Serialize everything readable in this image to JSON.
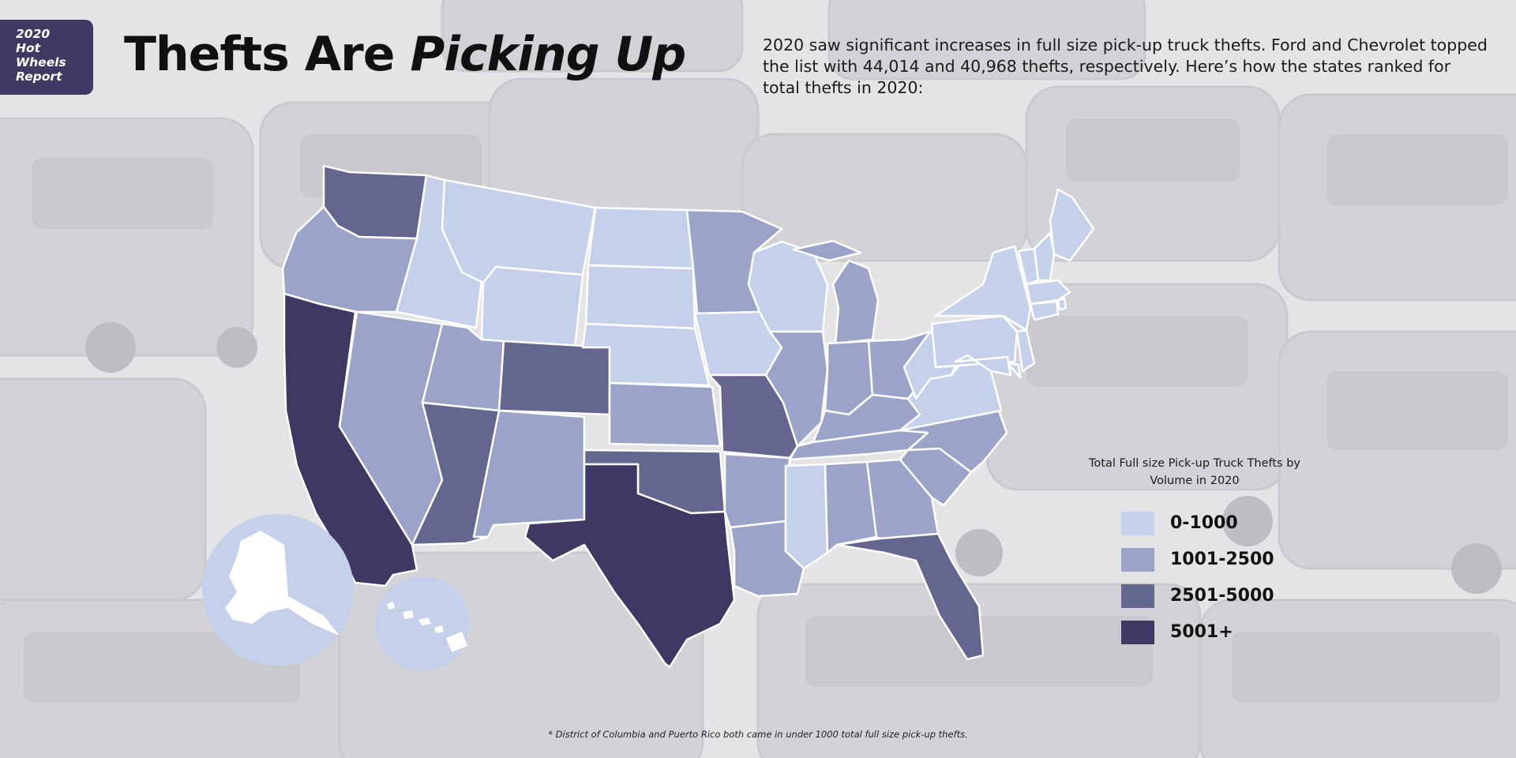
{
  "badge": {
    "lines": [
      "2020",
      "Hot",
      "Wheels",
      "Report"
    ]
  },
  "title": {
    "plain": "Thefts Are ",
    "italic": "Picking Up"
  },
  "intro": "2020 saw significant increases in full size pick-up truck thefts. Ford and Chevrolet topped the list with 44,014 and 40,968 thefts, respectively. Here’s how the states ranked for total thefts in 2020:",
  "legend": {
    "title": "Total Full size Pick-up Truck Thefts by Volume in 2020",
    "items": [
      {
        "label": "0-1000",
        "level": 1,
        "color": "#c5d0ea"
      },
      {
        "label": "1001-2500",
        "level": 2,
        "color": "#9ba4c8"
      },
      {
        "label": "2501-5000",
        "level": 3,
        "color": "#646690"
      },
      {
        "label": "5001+",
        "level": 4,
        "color": "#3e3862"
      }
    ]
  },
  "footnote": "* District of Columbia and Puerto Rico both came in under 1000 total full size pick-up thefts.",
  "map_data": {
    "category_by_state": {
      "WA": 3,
      "OR": 2,
      "CA": 4,
      "ID": 1,
      "NV": 2,
      "MT": 1,
      "WY": 1,
      "UT": 2,
      "AZ": 3,
      "CO": 3,
      "NM": 2,
      "ND": 1,
      "SD": 1,
      "NE": 1,
      "KS": 2,
      "OK": 3,
      "TX": 4,
      "MN": 2,
      "IA": 1,
      "MO": 3,
      "AR": 2,
      "LA": 2,
      "WI": 1,
      "IL": 2,
      "MI": 2,
      "IN": 2,
      "OH": 2,
      "KY": 2,
      "TN": 2,
      "MS": 1,
      "AL": 2,
      "GA": 2,
      "FL": 3,
      "SC": 2,
      "NC": 2,
      "VA": 1,
      "WV": 1,
      "PA": 1,
      "NY": 1,
      "ME": 1,
      "VT": 1,
      "NH": 1,
      "MA": 1,
      "RI": 1,
      "CT": 1,
      "NJ": 1,
      "DE": 1,
      "MD": 1,
      "AK": 1,
      "HI": 1
    }
  }
}
